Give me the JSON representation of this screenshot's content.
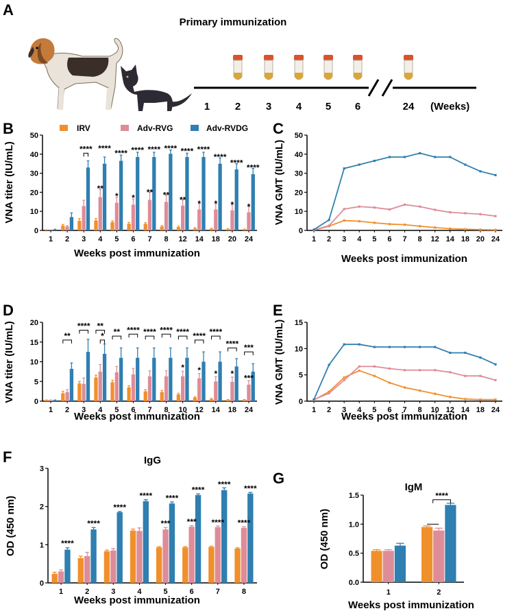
{
  "colors": {
    "IRV": "#f0902c",
    "Adv-RVG": "#de8c98",
    "Adv-RVDG": "#2f7fb0",
    "tube_cap": "#d9532c",
    "tube_liquid": "#d8a63a"
  },
  "panel_labels": {
    "A": "A",
    "B": "B",
    "C": "C",
    "D": "D",
    "E": "E",
    "F": "F",
    "G": "G"
  },
  "timeline": {
    "title": "Primary immunization",
    "weeks": [
      "1",
      "2",
      "3",
      "4",
      "5",
      "6",
      "24"
    ],
    "unit": "(Weeks)",
    "dog_icon": "beagle-dog-illustration",
    "cat_icon": "black-cat-illustration",
    "tube_icon": "sample-tube-icon"
  },
  "legend": [
    "IRV",
    "Adv-RVG",
    "Adv-RVDG"
  ],
  "chart_data": [
    {
      "id": "B",
      "type": "bar",
      "title": "",
      "xlabel": "Weeks post immunization",
      "ylabel": "VNA titer (IU/mL)",
      "ylim": [
        0,
        50
      ],
      "yticks": [
        "0",
        "10",
        "20",
        "30",
        "40",
        "50"
      ],
      "categories": [
        "1",
        "2",
        "3",
        "4",
        "5",
        "6",
        "7",
        "8",
        "12",
        "14",
        "18",
        "20",
        "24"
      ],
      "series": [
        {
          "name": "IRV",
          "values": [
            0.2,
            2.5,
            5,
            5.2,
            4.3,
            3.5,
            3.4,
            2,
            1.7,
            1,
            0.8,
            0.6,
            0.5
          ],
          "errors": [
            0.1,
            0.6,
            1.2,
            1,
            0.7,
            0.7,
            0.6,
            0.5,
            0.5,
            0.4,
            0.3,
            0.3,
            0.2
          ]
        },
        {
          "name": "Adv-RVG",
          "values": [
            0.2,
            2,
            12.8,
            17.5,
            14.5,
            13.5,
            16,
            15,
            13,
            11,
            11,
            10.5,
            9.5
          ],
          "errors": [
            0.1,
            0.5,
            3,
            4,
            3,
            3,
            4,
            3.5,
            3,
            3,
            3,
            3,
            3
          ]
        },
        {
          "name": "Adv-RVDG",
          "values": [
            0.4,
            7,
            33,
            35,
            36.5,
            38.5,
            38.5,
            40.2,
            38.5,
            38.5,
            35,
            32,
            29.5
          ],
          "errors": [
            0.2,
            2.2,
            3.5,
            3.5,
            3,
            2.5,
            2.5,
            2,
            2,
            2.5,
            3,
            3,
            3
          ]
        }
      ],
      "annotations": [
        {
          "cat": 2,
          "type": "bracket",
          "a": 1,
          "b": 2,
          "level": 40.5,
          "label": "****"
        },
        {
          "cat": 3,
          "type": "text",
          "over": 2,
          "level": 43,
          "label": "****"
        },
        {
          "cat": 3,
          "type": "text",
          "over": 1,
          "level": 22,
          "label": "**"
        },
        {
          "cat": 4,
          "type": "text",
          "over": 2,
          "level": 40.5,
          "label": "****"
        },
        {
          "cat": 4,
          "type": "text",
          "over": 1,
          "level": 18,
          "label": "*"
        },
        {
          "cat": 5,
          "type": "text",
          "over": 2,
          "level": 42,
          "label": "****"
        },
        {
          "cat": 5,
          "type": "text",
          "over": 1,
          "level": 17,
          "label": "*"
        },
        {
          "cat": 6,
          "type": "text",
          "over": 2,
          "level": 42.5,
          "label": "****"
        },
        {
          "cat": 6,
          "type": "text",
          "over": 1,
          "level": 20,
          "label": "**"
        },
        {
          "cat": 7,
          "type": "text",
          "over": 2,
          "level": 43,
          "label": "****"
        },
        {
          "cat": 7,
          "type": "text",
          "over": 1,
          "level": 18.5,
          "label": "**"
        },
        {
          "cat": 8,
          "type": "text",
          "over": 2,
          "level": 41.5,
          "label": "****"
        },
        {
          "cat": 8,
          "type": "text",
          "over": 1,
          "level": 16,
          "label": "**"
        },
        {
          "cat": 9,
          "type": "text",
          "over": 2,
          "level": 42.5,
          "label": "****"
        },
        {
          "cat": 9,
          "type": "text",
          "over": 1,
          "level": 14,
          "label": "*"
        },
        {
          "cat": 10,
          "type": "text",
          "over": 2,
          "level": 38.5,
          "label": "****"
        },
        {
          "cat": 10,
          "type": "text",
          "over": 1,
          "level": 14,
          "label": "*"
        },
        {
          "cat": 11,
          "type": "text",
          "over": 2,
          "level": 35.5,
          "label": "****"
        },
        {
          "cat": 11,
          "type": "text",
          "over": 1,
          "level": 13.5,
          "label": "*"
        },
        {
          "cat": 12,
          "type": "text",
          "over": 2,
          "level": 33,
          "label": "****"
        },
        {
          "cat": 12,
          "type": "text",
          "over": 1,
          "level": 12.5,
          "label": "*"
        }
      ]
    },
    {
      "id": "C",
      "type": "line",
      "xlabel": "Weeks post immunization",
      "ylabel": "VNA GMT (IU/mL)",
      "ylim": [
        0,
        50
      ],
      "yticks": [
        "0",
        "10",
        "20",
        "30",
        "40",
        "50"
      ],
      "categories": [
        "1",
        "2",
        "3",
        "4",
        "5",
        "6",
        "7",
        "8",
        "12",
        "14",
        "18",
        "20",
        "24"
      ],
      "series": [
        {
          "name": "IRV",
          "values": [
            0.2,
            2.2,
            5.2,
            4.8,
            4,
            3.3,
            3,
            2.2,
            1.5,
            0.9,
            0.6,
            0.4,
            0.3
          ]
        },
        {
          "name": "Adv-RVG",
          "values": [
            0.2,
            2.5,
            11.2,
            12.5,
            12,
            11,
            13.5,
            12.5,
            10.8,
            9.5,
            9,
            8.5,
            7.5
          ]
        },
        {
          "name": "Adv-RVDG",
          "values": [
            0.4,
            5.5,
            32.5,
            34.5,
            36.5,
            38.5,
            38.5,
            40.5,
            38.5,
            38.5,
            34.5,
            31,
            29
          ]
        }
      ]
    },
    {
      "id": "D",
      "type": "bar",
      "xlabel": "Weeks post immunization",
      "ylabel": "VNA titer (IU/mL)",
      "ylim": [
        0,
        20
      ],
      "yticks": [
        "0",
        "5",
        "10",
        "15",
        "20"
      ],
      "categories": [
        "1",
        "2",
        "3",
        "4",
        "5",
        "6",
        "7",
        "8",
        "10",
        "12",
        "14",
        "18",
        "24"
      ],
      "series": [
        {
          "name": "IRV",
          "values": [
            0.2,
            2,
            4.5,
            6,
            4.8,
            3.5,
            2.5,
            2.3,
            1.7,
            0.9,
            0.5,
            0.3,
            0.3
          ],
          "errors": [
            0.1,
            0.5,
            0.5,
            0.6,
            0.5,
            0.4,
            0.4,
            0.4,
            0.3,
            0.2,
            0.2,
            0.1,
            0.1
          ]
        },
        {
          "name": "Adv-RVG",
          "values": [
            0.2,
            2.3,
            4.4,
            7.5,
            7.3,
            6.8,
            6.3,
            6.3,
            6.3,
            5.8,
            5,
            4.9,
            4.2
          ],
          "errors": [
            0.1,
            0.6,
            1.5,
            1.8,
            1.5,
            1.5,
            1.4,
            1.4,
            1.3,
            1.2,
            1.2,
            1.2,
            1
          ]
        },
        {
          "name": "Adv-RVDG",
          "values": [
            0.2,
            8.2,
            12.5,
            12,
            11,
            11,
            11,
            11,
            11,
            10,
            10,
            8.8,
            7.5
          ],
          "errors": [
            0.1,
            1.5,
            3.2,
            2.5,
            2.5,
            2.5,
            2.5,
            2.5,
            2.5,
            2.5,
            2.5,
            2,
            2
          ]
        }
      ],
      "annotations": [
        {
          "cat": 1,
          "type": "bracket",
          "a": 0,
          "b": 2,
          "level": 15.5,
          "label": "**"
        },
        {
          "cat": 2,
          "type": "bracket",
          "a": 0,
          "b": 2,
          "level": 18,
          "label": "****"
        },
        {
          "cat": 3,
          "type": "bracket",
          "a": 0,
          "b": 2,
          "level": 18,
          "label": "**"
        },
        {
          "cat": 3,
          "type": "bracket",
          "a": 1,
          "b": 2,
          "level": 15.5,
          "label": "*"
        },
        {
          "cat": 4,
          "type": "bracket",
          "a": 0,
          "b": 2,
          "level": 16.5,
          "label": "**"
        },
        {
          "cat": 5,
          "type": "bracket",
          "a": 0,
          "b": 2,
          "level": 17,
          "label": "****"
        },
        {
          "cat": 6,
          "type": "bracket",
          "a": 0,
          "b": 2,
          "level": 16.5,
          "label": "****"
        },
        {
          "cat": 7,
          "type": "bracket",
          "a": 0,
          "b": 2,
          "level": 17,
          "label": "****"
        },
        {
          "cat": 8,
          "type": "bracket",
          "a": 0,
          "b": 2,
          "level": 16.5,
          "label": "****"
        },
        {
          "cat": 8,
          "type": "text",
          "over": 1,
          "level": 8.5,
          "label": "*"
        },
        {
          "cat": 9,
          "type": "bracket",
          "a": 0,
          "b": 2,
          "level": 15.5,
          "label": "****"
        },
        {
          "cat": 9,
          "type": "text",
          "over": 1,
          "level": 7.8,
          "label": "*"
        },
        {
          "cat": 10,
          "type": "bracket",
          "a": 0,
          "b": 2,
          "level": 16.5,
          "label": "****"
        },
        {
          "cat": 10,
          "type": "text",
          "over": 1,
          "level": 7,
          "label": "*"
        },
        {
          "cat": 11,
          "type": "bracket",
          "a": 0,
          "b": 2,
          "level": 13.5,
          "label": "****"
        },
        {
          "cat": 11,
          "type": "text",
          "over": 1,
          "level": 7,
          "label": "*"
        },
        {
          "cat": 12,
          "type": "bracket",
          "a": 0,
          "b": 2,
          "level": 12.5,
          "label": "***"
        },
        {
          "cat": 12,
          "type": "text",
          "over": 1,
          "level": 5.8,
          "label": "***"
        }
      ]
    },
    {
      "id": "E",
      "type": "line",
      "xlabel": "Weeks post immunization",
      "ylabel": "VNA GMT (IU/mL)",
      "ylim": [
        0,
        15
      ],
      "yticks": [
        "0",
        "5",
        "10",
        "15"
      ],
      "categories": [
        "1",
        "2",
        "3",
        "4",
        "5",
        "6",
        "7",
        "8",
        "10",
        "12",
        "14",
        "18",
        "24"
      ],
      "series": [
        {
          "name": "IRV",
          "values": [
            0.2,
            1.8,
            4.5,
            5.8,
            4.8,
            3.5,
            2.6,
            2,
            1.4,
            0.8,
            0.4,
            0.3,
            0.3
          ]
        },
        {
          "name": "Adv-RVG",
          "values": [
            0.3,
            1.5,
            4,
            6.6,
            6.6,
            6.2,
            5.9,
            5.9,
            5.9,
            5.5,
            4.8,
            4.8,
            4
          ]
        },
        {
          "name": "Adv-RVDG",
          "values": [
            0.3,
            6.9,
            10.8,
            10.8,
            10.3,
            10.3,
            10.3,
            10.3,
            10.3,
            9.2,
            9.2,
            8.3,
            7
          ]
        }
      ]
    },
    {
      "id": "F",
      "type": "bar",
      "title": "IgG",
      "xlabel": "Weeks post immunization",
      "ylabel": "OD (450 nm)",
      "ylim": [
        0,
        3
      ],
      "yticks": [
        "0",
        "1",
        "2",
        "3"
      ],
      "categories": [
        "1",
        "2",
        "3",
        "4",
        "5",
        "6",
        "7",
        "8"
      ],
      "series": [
        {
          "name": "IRV",
          "values": [
            0.24,
            0.65,
            0.83,
            1.37,
            0.93,
            0.93,
            0.94,
            0.9
          ],
          "errors": [
            0.04,
            0.05,
            0.03,
            0.04,
            0.02,
            0.02,
            0.02,
            0.02
          ]
        },
        {
          "name": "Adv-RVG",
          "values": [
            0.3,
            0.7,
            0.85,
            1.36,
            1.4,
            1.47,
            1.46,
            1.44
          ],
          "errors": [
            0.04,
            0.1,
            0.05,
            0.08,
            0.05,
            0.03,
            0.03,
            0.03
          ]
        },
        {
          "name": "Adv-RVDG",
          "values": [
            0.87,
            1.4,
            1.85,
            2.14,
            2.08,
            2.3,
            2.43,
            2.34
          ],
          "errors": [
            0.05,
            0.05,
            0.02,
            0.04,
            0.04,
            0.03,
            0.06,
            0.03
          ]
        }
      ],
      "annotations": [
        {
          "cat": 0,
          "type": "text",
          "over": 2,
          "level": 1.03,
          "label": "****"
        },
        {
          "cat": 1,
          "type": "text",
          "over": 2,
          "level": 1.55,
          "label": "****"
        },
        {
          "cat": 2,
          "type": "text",
          "over": 2,
          "level": 1.98,
          "label": "****"
        },
        {
          "cat": 3,
          "type": "text",
          "over": 2,
          "level": 2.28,
          "label": "****"
        },
        {
          "cat": 4,
          "type": "text",
          "over": 2,
          "level": 2.22,
          "label": "****"
        },
        {
          "cat": 4,
          "type": "text",
          "over": 1,
          "level": 1.55,
          "label": "***"
        },
        {
          "cat": 5,
          "type": "text",
          "over": 2,
          "level": 2.43,
          "label": "****"
        },
        {
          "cat": 5,
          "type": "text",
          "over": 1,
          "level": 1.6,
          "label": "***"
        },
        {
          "cat": 6,
          "type": "text",
          "over": 2,
          "level": 2.58,
          "label": "****"
        },
        {
          "cat": 6,
          "type": "text",
          "over": 1,
          "level": 1.58,
          "label": "****"
        },
        {
          "cat": 7,
          "type": "text",
          "over": 2,
          "level": 2.47,
          "label": "****"
        },
        {
          "cat": 7,
          "type": "text",
          "over": 1,
          "level": 1.57,
          "label": "****"
        }
      ]
    },
    {
      "id": "G",
      "type": "bar",
      "title": "IgM",
      "xlabel": "Weeks post immunization",
      "ylabel": "OD (450 nm)",
      "ylim": [
        0,
        1.5
      ],
      "yticks": [
        "0.0",
        "0.5",
        "1.0",
        "1.5"
      ],
      "categories": [
        "1",
        "2"
      ],
      "series": [
        {
          "name": "IRV",
          "values": [
            0.54,
            0.95
          ],
          "errors": [
            0.02,
            0.02
          ]
        },
        {
          "name": "Adv-RVG",
          "values": [
            0.54,
            0.89
          ],
          "errors": [
            0.02,
            0.04
          ]
        },
        {
          "name": "Adv-RVDG",
          "values": [
            0.63,
            1.33
          ],
          "errors": [
            0.04,
            0.03
          ]
        }
      ],
      "annotations": [
        {
          "cat": 1,
          "type": "line",
          "a": 0,
          "b": 1,
          "level": 1.0,
          "label": ""
        },
        {
          "cat": 1,
          "type": "bracket",
          "a": 0.5,
          "b": 2,
          "level": 1.42,
          "label": "****"
        }
      ]
    }
  ]
}
